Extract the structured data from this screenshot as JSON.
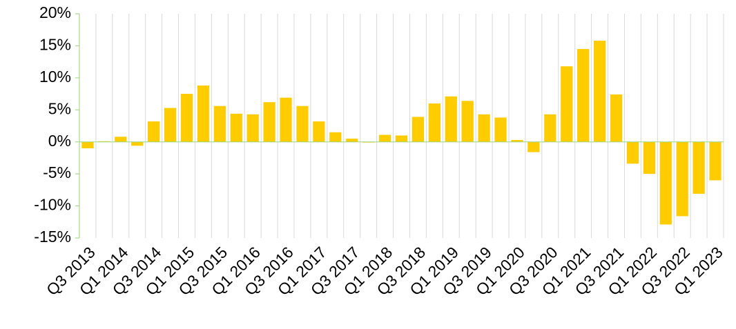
{
  "chart_data": {
    "type": "bar",
    "categories": [
      "Q3 2013",
      null,
      "Q1 2014",
      null,
      "Q3 2014",
      null,
      "Q1 2015",
      null,
      "Q3 2015",
      null,
      "Q1 2016",
      null,
      "Q3 2016",
      null,
      "Q1 2017",
      null,
      "Q3 2017",
      null,
      "Q1 2018",
      null,
      "Q3 2018",
      null,
      "Q1 2019",
      null,
      "Q3 2019",
      null,
      "Q1 2020",
      null,
      "Q3 2020",
      null,
      "Q1 2021",
      null,
      "Q3 2021",
      null,
      "Q1 2022",
      null,
      "Q3 2022",
      null,
      "Q1 2023"
    ],
    "values": [
      -1.0,
      0.1,
      0.8,
      -0.6,
      3.2,
      5.3,
      7.5,
      8.8,
      5.6,
      4.4,
      4.3,
      6.2,
      6.9,
      5.6,
      3.2,
      1.5,
      0.5,
      -0.1,
      1.1,
      1.0,
      3.9,
      6.0,
      7.1,
      6.4,
      4.3,
      3.8,
      0.3,
      -1.6,
      4.3,
      11.8,
      14.5,
      15.8,
      7.4,
      -3.4,
      -5.0,
      -12.9,
      -11.6,
      -8.1,
      -6.0
    ],
    "color": "#ffcc00",
    "ylim": [
      -15,
      20
    ],
    "yticks": [
      {
        "value": -15,
        "label": "-15%"
      },
      {
        "value": -10,
        "label": "-10%"
      },
      {
        "value": -5,
        "label": "-5%"
      },
      {
        "value": 0,
        "label": "0%"
      },
      {
        "value": 5,
        "label": "5%"
      },
      {
        "value": 10,
        "label": "10%"
      },
      {
        "value": 15,
        "label": "15%"
      },
      {
        "value": 20,
        "label": "20%"
      }
    ],
    "grid": true
  }
}
